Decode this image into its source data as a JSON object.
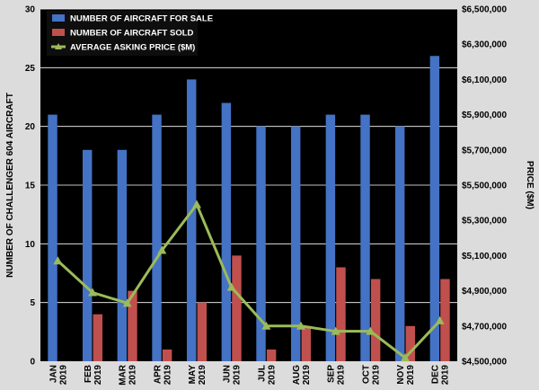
{
  "chart_data": {
    "type": "bar",
    "categories": [
      [
        "JAN",
        "2019"
      ],
      [
        "FEB",
        "2019"
      ],
      [
        "MAR",
        "2019"
      ],
      [
        "APR",
        "2019"
      ],
      [
        "MAY",
        "2019"
      ],
      [
        "JUN",
        "2019"
      ],
      [
        "JUL",
        "2019"
      ],
      [
        "AUG",
        "2019"
      ],
      [
        "SEP",
        "2019"
      ],
      [
        "OCT",
        "2019"
      ],
      [
        "NOV",
        "2019"
      ],
      [
        "DEC",
        "2019"
      ]
    ],
    "series": [
      {
        "name": "NUMBER OF AIRCRAFT FOR SALE",
        "type": "bar",
        "axis": "left",
        "color": "#4472c4",
        "values": [
          21,
          18,
          18,
          21,
          24,
          22,
          20,
          20,
          21,
          21,
          20,
          26
        ]
      },
      {
        "name": "NUMBER OF AIRCRAFT SOLD",
        "type": "bar",
        "axis": "left",
        "color": "#c0504d",
        "values": [
          0,
          4,
          6,
          1,
          5,
          9,
          1,
          3,
          8,
          7,
          3,
          7
        ]
      },
      {
        "name": "AVERAGE ASKING PRICE ($M)",
        "type": "line",
        "axis": "right",
        "color": "#9bbb59",
        "values": [
          5070000,
          4890000,
          4830000,
          5130000,
          5390000,
          4920000,
          4700000,
          4700000,
          4670000,
          4670000,
          4520000,
          4730000
        ]
      }
    ],
    "ylabel": "NUMBER OF CHALLENGER 604 AIRCRAFT",
    "y2label": "PRICE ($M)",
    "ylim": [
      0,
      30
    ],
    "yticks": [
      0,
      5,
      10,
      15,
      20,
      25,
      30
    ],
    "y2lim": [
      4500000,
      6500000
    ],
    "y2ticks": [
      "$4,500,000",
      "$4,700,000",
      "$4,900,000",
      "$5,100,000",
      "$5,300,000",
      "$5,500,000",
      "$5,700,000",
      "$5,900,000",
      "$6,100,000",
      "$6,300,000",
      "$6,500,000"
    ],
    "grid": true,
    "legend": "top-left",
    "background": "#000000",
    "page_background": "#dcdcdc"
  }
}
